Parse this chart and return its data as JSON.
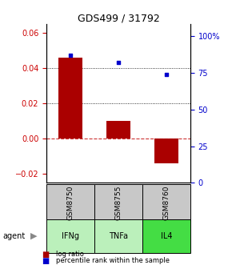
{
  "title": "GDS499 / 31792",
  "samples": [
    "GSM8750",
    "GSM8755",
    "GSM8760"
  ],
  "agents": [
    "IFNg",
    "TNFa",
    "IL4"
  ],
  "log_ratios": [
    0.046,
    0.01,
    -0.014
  ],
  "percentile_ranks": [
    87,
    82,
    74
  ],
  "ylim_left": [
    -0.025,
    0.065
  ],
  "ylim_right": [
    0,
    108.33
  ],
  "yticks_left": [
    -0.02,
    0.0,
    0.02,
    0.04,
    0.06
  ],
  "yticks_right": [
    0,
    25,
    50,
    75,
    100
  ],
  "bar_color": "#aa0000",
  "dot_color": "#0000cc",
  "zero_line_color": "#cc3333",
  "sample_bg": "#c8c8c8",
  "agent_bg_light": "#bbf0bb",
  "agent_bg_dark": "#44dd44",
  "left_tick_color": "#cc0000",
  "right_tick_color": "#0000cc",
  "title_fontsize": 9,
  "tick_fontsize": 7,
  "bar_width": 0.5
}
